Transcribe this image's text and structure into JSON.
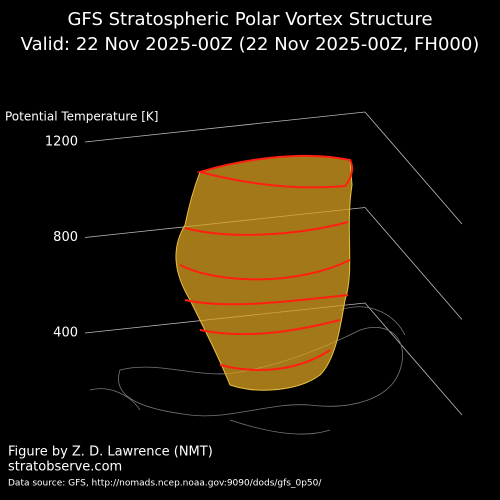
{
  "chart_data": {
    "type": "surface3d",
    "title": "GFS Stratospheric Polar Vortex Structure",
    "subtitle": "Valid: 22 Nov 2025-00Z  (22 Nov 2025-00Z, FH000)",
    "zlabel": "Potential Temperature [K]",
    "zlim": [
      400,
      1200
    ],
    "zticks": [
      400,
      800,
      1200
    ],
    "credit": "Figure by Z. D. Lawrence (NMT)",
    "website": "stratobserve.com",
    "source": "Data source: GFS, http://nomads.ncep.noaa.gov:9090/dods/gfs_0p50/"
  }
}
